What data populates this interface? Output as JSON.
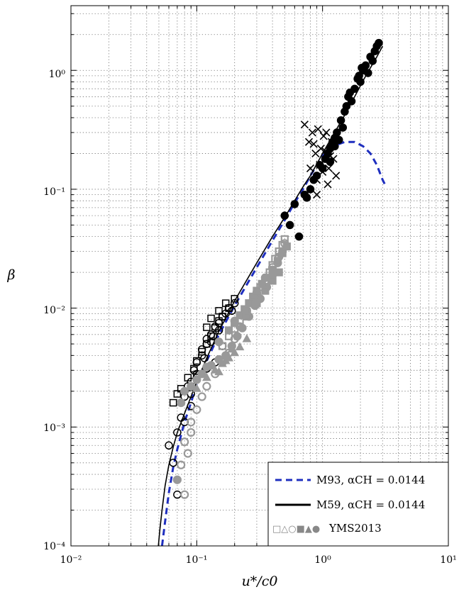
{
  "chart_data": {
    "type": "scatter",
    "xlabel": "u*/c0",
    "ylabel": "β",
    "xscale": "log",
    "yscale": "log",
    "xlim": [
      0.01,
      10
    ],
    "ylim": [
      0.0001,
      3.5
    ],
    "x_tick_labels": [
      "10⁻²",
      "10⁻¹",
      "10⁰",
      "10¹"
    ],
    "y_tick_labels": [
      "10⁻⁴",
      "10⁻³",
      "10⁻²",
      "10⁻¹",
      "10⁰"
    ],
    "grid": true,
    "legend_position": "bottom-right",
    "legend": [
      {
        "label": "M93, αCH = 0.0144",
        "style": "dashed",
        "color": "#1f2fbf"
      },
      {
        "label": "M59, αCH = 0.0144",
        "style": "solid",
        "color": "#000000"
      },
      {
        "label": "YMS2013",
        "style": "markers",
        "color": "#888888"
      }
    ],
    "lines": [
      {
        "name": "M93, αCH = 0.0144",
        "color": "#1f2fbf",
        "dash": "dashed",
        "x": [
          0.053,
          0.056,
          0.06,
          0.065,
          0.07,
          0.08,
          0.09,
          0.1,
          0.12,
          0.15,
          0.2,
          0.3,
          0.4,
          0.5,
          0.6,
          0.7,
          0.8,
          0.9,
          1.0,
          1.2,
          1.5,
          1.8,
          2.1,
          2.4,
          2.7,
          3.0,
          3.2
        ],
        "y": [
          0.0001,
          0.00016,
          0.00028,
          0.00046,
          0.00065,
          0.0011,
          0.0016,
          0.0023,
          0.0036,
          0.006,
          0.0105,
          0.022,
          0.037,
          0.055,
          0.077,
          0.1,
          0.13,
          0.16,
          0.19,
          0.23,
          0.25,
          0.25,
          0.23,
          0.2,
          0.16,
          0.12,
          0.105
        ]
      },
      {
        "name": "M59, αCH = 0.0144",
        "color": "#000000",
        "dash": "solid",
        "x": [
          0.0495,
          0.051,
          0.053,
          0.056,
          0.06,
          0.065,
          0.07,
          0.08,
          0.09,
          0.1,
          0.12,
          0.15,
          0.2,
          0.3,
          0.4,
          0.5,
          0.6,
          0.7,
          0.8,
          1.0,
          1.2,
          1.5,
          1.8,
          2.1,
          2.4,
          2.7,
          3.0
        ],
        "y": [
          0.0001,
          0.00014,
          0.0002,
          0.00032,
          0.00048,
          0.00068,
          0.0009,
          0.0013,
          0.0018,
          0.0024,
          0.0038,
          0.0064,
          0.0115,
          0.024,
          0.04,
          0.058,
          0.08,
          0.105,
          0.13,
          0.2,
          0.28,
          0.42,
          0.6,
          0.82,
          1.05,
          1.3,
          1.6
        ]
      }
    ],
    "series": [
      {
        "name": "filled circles",
        "marker": "circle",
        "fill": "#000000",
        "stroke": "#000000",
        "x": [
          0.6,
          0.72,
          0.8,
          0.85,
          0.9,
          0.95,
          1.0,
          1.05,
          1.1,
          1.15,
          1.2,
          1.25,
          1.3,
          1.35,
          1.4,
          1.45,
          1.5,
          1.6,
          1.7,
          1.8,
          1.9,
          2.0,
          2.1,
          2.2,
          2.3,
          2.4,
          2.5,
          2.6,
          2.7,
          2.8,
          0.5,
          0.55,
          0.65,
          0.75,
          1.15,
          1.25,
          1.55,
          1.65,
          1.95,
          2.05
        ],
        "y": [
          0.075,
          0.09,
          0.1,
          0.12,
          0.13,
          0.16,
          0.15,
          0.18,
          0.2,
          0.17,
          0.25,
          0.23,
          0.3,
          0.26,
          0.38,
          0.33,
          0.45,
          0.6,
          0.55,
          0.7,
          0.85,
          0.8,
          1.0,
          1.1,
          0.95,
          1.3,
          1.2,
          1.45,
          1.6,
          1.7,
          0.06,
          0.05,
          0.04,
          0.085,
          0.22,
          0.27,
          0.5,
          0.65,
          0.9,
          1.05
        ]
      },
      {
        "name": "crosses",
        "marker": "x",
        "fill": "none",
        "stroke": "#000000",
        "x": [
          0.72,
          0.78,
          0.83,
          0.88,
          0.92,
          0.97,
          1.02,
          1.07,
          1.12,
          1.18,
          1.22,
          1.28,
          0.8,
          0.9,
          1.0,
          1.1,
          0.85,
          0.95,
          1.05,
          1.15,
          0.9
        ],
        "y": [
          0.35,
          0.25,
          0.3,
          0.2,
          0.32,
          0.22,
          0.28,
          0.3,
          0.15,
          0.25,
          0.18,
          0.13,
          0.15,
          0.12,
          0.14,
          0.11,
          0.24,
          0.16,
          0.21,
          0.19,
          0.09
        ]
      },
      {
        "name": "open circles black",
        "marker": "circle",
        "fill": "none",
        "stroke": "#000000",
        "x": [
          0.06,
          0.065,
          0.07,
          0.075,
          0.08,
          0.085,
          0.09,
          0.095,
          0.1,
          0.11,
          0.12,
          0.13,
          0.14,
          0.15,
          0.16,
          0.17,
          0.18,
          0.19,
          0.2,
          0.09,
          0.1,
          0.12,
          0.15,
          0.11,
          0.13,
          0.16,
          0.08,
          0.07,
          0.14,
          0.18,
          0.12,
          0.1,
          0.09,
          0.115,
          0.135
        ],
        "y": [
          0.0007,
          0.0005,
          0.0009,
          0.0012,
          0.0018,
          0.0022,
          0.0024,
          0.003,
          0.0035,
          0.004,
          0.005,
          0.006,
          0.007,
          0.0075,
          0.0085,
          0.009,
          0.01,
          0.0095,
          0.011,
          0.0015,
          0.0028,
          0.0055,
          0.0065,
          0.0045,
          0.0052,
          0.0048,
          0.0011,
          0.00027,
          0.0035,
          0.0042,
          0.0031,
          0.0026,
          0.0019,
          0.0038,
          0.0058
        ]
      },
      {
        "name": "open squares black",
        "marker": "square",
        "fill": "none",
        "stroke": "#000000",
        "x": [
          0.065,
          0.07,
          0.075,
          0.085,
          0.095,
          0.1,
          0.11,
          0.12,
          0.13,
          0.14,
          0.15,
          0.16,
          0.18,
          0.2,
          0.13,
          0.15,
          0.17,
          0.12
        ],
        "y": [
          0.0016,
          0.0019,
          0.0021,
          0.0026,
          0.0031,
          0.0036,
          0.0043,
          0.005,
          0.0058,
          0.0068,
          0.0078,
          0.0085,
          0.01,
          0.012,
          0.0082,
          0.0095,
          0.011,
          0.0069
        ]
      },
      {
        "name": "YMS2013 open grey",
        "marker": "circle",
        "fill": "none",
        "stroke": "#999999",
        "x": [
          0.075,
          0.08,
          0.085,
          0.09,
          0.1,
          0.11,
          0.12,
          0.14,
          0.16,
          0.18,
          0.2,
          0.22,
          0.25,
          0.28,
          0.3,
          0.35,
          0.4,
          0.45,
          0.5,
          0.08,
          0.09
        ],
        "y": [
          0.00048,
          0.00027,
          0.0006,
          0.0009,
          0.0014,
          0.0018,
          0.0022,
          0.0028,
          0.0035,
          0.0042,
          0.0055,
          0.007,
          0.009,
          0.011,
          0.013,
          0.017,
          0.022,
          0.027,
          0.035,
          0.00075,
          0.0011
        ]
      },
      {
        "name": "YMS2013 open squares",
        "marker": "square",
        "fill": "none",
        "stroke": "#999999",
        "x": [
          0.16,
          0.18,
          0.2,
          0.22,
          0.25,
          0.28,
          0.3,
          0.32,
          0.35,
          0.38,
          0.4,
          0.42,
          0.45,
          0.48,
          0.5
        ],
        "y": [
          0.0048,
          0.0058,
          0.0067,
          0.0078,
          0.0092,
          0.011,
          0.013,
          0.015,
          0.017,
          0.02,
          0.023,
          0.026,
          0.03,
          0.034,
          0.038
        ]
      },
      {
        "name": "YMS2013 filled grey",
        "marker": "circle",
        "fill": "#999999",
        "stroke": "#999999",
        "x": [
          0.07,
          0.075,
          0.08,
          0.09,
          0.1,
          0.11,
          0.12,
          0.13,
          0.15,
          0.17,
          0.19,
          0.21,
          0.23,
          0.26,
          0.29,
          0.32,
          0.36,
          0.4,
          0.44,
          0.48,
          0.15,
          0.2,
          0.25,
          0.3,
          0.35
        ],
        "y": [
          0.00036,
          0.0016,
          0.002,
          0.0022,
          0.0025,
          0.0028,
          0.0032,
          0.0033,
          0.0037,
          0.004,
          0.0048,
          0.0058,
          0.0068,
          0.0085,
          0.0105,
          0.012,
          0.015,
          0.019,
          0.024,
          0.03,
          0.0052,
          0.0078,
          0.0095,
          0.0135,
          0.018
        ]
      },
      {
        "name": "YMS2013 filled squares",
        "marker": "square",
        "fill": "#999999",
        "stroke": "#999999",
        "x": [
          0.18,
          0.2,
          0.22,
          0.24,
          0.26,
          0.28,
          0.3,
          0.33,
          0.36,
          0.4,
          0.44,
          0.48,
          0.52,
          0.25,
          0.3,
          0.35,
          0.4,
          0.45
        ],
        "y": [
          0.0065,
          0.0075,
          0.0087,
          0.0098,
          0.011,
          0.0125,
          0.014,
          0.016,
          0.018,
          0.021,
          0.025,
          0.029,
          0.033,
          0.0085,
          0.011,
          0.014,
          0.017,
          0.02
        ]
      },
      {
        "name": "YMS2013 filled triangles",
        "marker": "triangle",
        "fill": "#999999",
        "stroke": "#999999",
        "x": [
          0.1,
          0.12,
          0.14,
          0.16,
          0.18,
          0.2,
          0.22,
          0.25,
          0.15,
          0.17,
          0.19
        ],
        "y": [
          0.0021,
          0.0026,
          0.003,
          0.0034,
          0.0038,
          0.0042,
          0.0047,
          0.0055,
          0.0029,
          0.0036,
          0.0045
        ]
      }
    ]
  },
  "legend_markers": "□△○■▲●"
}
